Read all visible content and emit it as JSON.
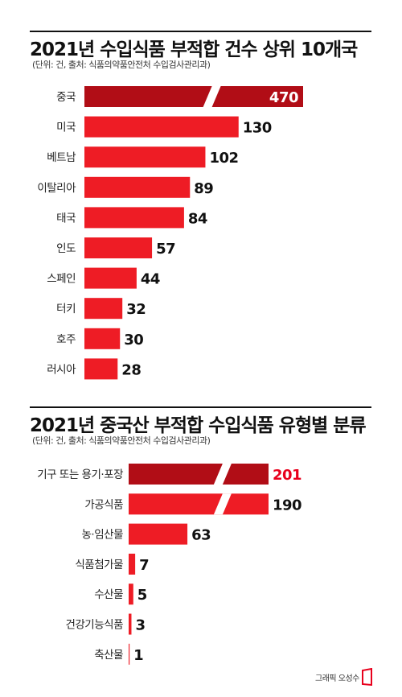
{
  "chart_data": [
    {
      "type": "bar",
      "orientation": "horizontal",
      "title": "2021년 수입식품 부적합 건수 상위 10개국",
      "note": "(단위: 건, 출처: 식품의약품안전처 수입검사관리과)",
      "categories": [
        "중국",
        "미국",
        "베트남",
        "이탈리아",
        "태국",
        "인도",
        "스페인",
        "터키",
        "호주",
        "러시아"
      ],
      "values": [
        470,
        130,
        102,
        89,
        84,
        57,
        44,
        32,
        30,
        28
      ],
      "axis_break_on": [
        "중국"
      ],
      "highlight": "중국"
    },
    {
      "type": "bar",
      "orientation": "horizontal",
      "title": "2021년 중국산 부적합 수입식품 유형별 분류",
      "note": "(단위: 건, 출처: 식품의약품안전처 수입검사관리과)",
      "categories": [
        "기구 또는 용기·포장",
        "가공식품",
        "농·임산물",
        "식품첨가물",
        "수산물",
        "건강기능식품",
        "축산물"
      ],
      "values": [
        201,
        190,
        63,
        7,
        5,
        3,
        1
      ],
      "axis_break_on": [
        "기구 또는 용기·포장",
        "가공식품"
      ],
      "highlight": "기구 또는 용기·포장"
    }
  ],
  "colors": {
    "bar": "#ee1c25",
    "highlight_bar": "#b10d16",
    "highlight_text": "#e8001c"
  },
  "credit": "그래픽 오성수"
}
